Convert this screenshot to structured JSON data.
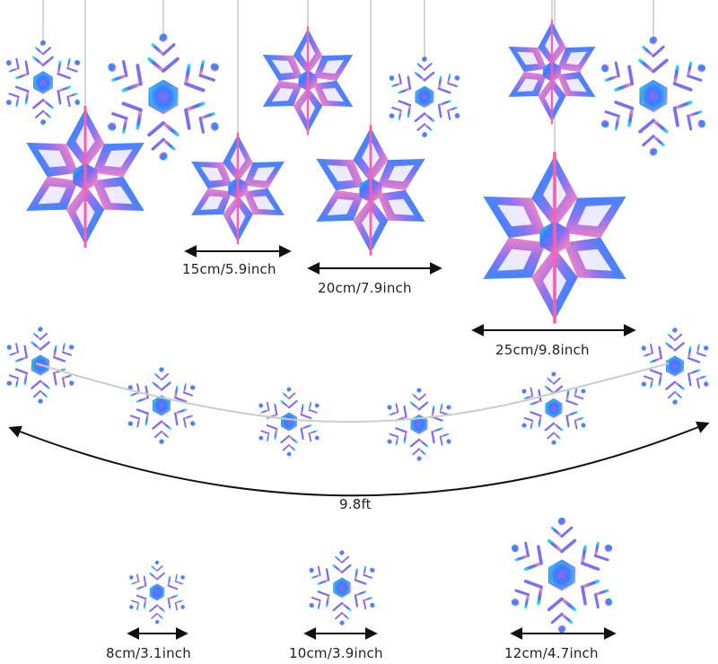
{
  "palette": {
    "snow_1": "#3d7bff",
    "snow_2": "#8a6cf0",
    "snow_3": "#3fd6e8",
    "snow_4": "#f07ac2",
    "snow_5": "#7ee0a8",
    "arrow": "#111111",
    "string": "#c9c9c9"
  },
  "icons": {
    "snowflake": "iridescent-snowflake-icon",
    "arrow": "double-headed-arrow"
  },
  "dimension_labels": {
    "s15": "15cm/5.9inch",
    "s20": "20cm/7.9inch",
    "s25": "25cm/9.8inch",
    "garland": "9.8ft",
    "s8": "8cm/3.1inch",
    "s10": "10cm/3.9inch",
    "s12": "12cm/4.7inch"
  }
}
